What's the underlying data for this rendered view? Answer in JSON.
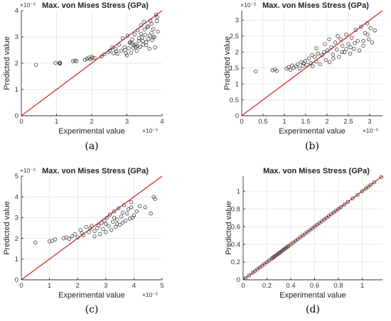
{
  "chart_data": [
    {
      "type": "scatter",
      "panel": "(a)",
      "title": "Max. von Mises Stress (GPa)",
      "xlabel": "Experimental value",
      "ylabel": "Predicted value",
      "x_exponent": "×10⁻³",
      "y_exponent": "×10⁻³",
      "xlim": [
        0,
        4
      ],
      "ylim": [
        0,
        4
      ],
      "xticks": [
        "0",
        "1",
        "2",
        "3",
        "4"
      ],
      "yticks": [
        "0",
        "1",
        "2",
        "3",
        "4"
      ],
      "grid": true,
      "reference_line": "y = x",
      "x": [
        0.42,
        0.97,
        1.08,
        1.1,
        1.1,
        1.47,
        1.52,
        1.57,
        1.81,
        1.86,
        1.92,
        1.96,
        2.0,
        2.02,
        2.08,
        2.28,
        2.36,
        2.48,
        2.52,
        2.58,
        2.62,
        2.68,
        2.73,
        2.78,
        2.84,
        2.88,
        2.93,
        2.97,
        3.02,
        3.05,
        3.08,
        3.12,
        3.15,
        3.18,
        3.22,
        3.25,
        3.28,
        3.31,
        3.34,
        3.37,
        3.4,
        3.43,
        3.46,
        3.49,
        3.52,
        3.55,
        3.58,
        3.61,
        3.64,
        3.67,
        3.7,
        3.72,
        3.75,
        3.78,
        3.8,
        3.83,
        3.86,
        3.88,
        3.2,
        3.35,
        3.5,
        3.65,
        3.1,
        3.25,
        3.45,
        3.6,
        3.75,
        2.95,
        3.15,
        3.4,
        3.55,
        3.7,
        3.85,
        2.7,
        3.0,
        3.3
      ],
      "y": [
        1.94,
        2.01,
        2.0,
        2.02,
        1.98,
        2.08,
        2.1,
        2.08,
        2.13,
        2.17,
        2.21,
        2.15,
        2.25,
        2.19,
        2.2,
        2.26,
        2.34,
        2.42,
        2.48,
        2.6,
        2.38,
        2.55,
        2.36,
        2.7,
        2.48,
        2.95,
        2.61,
        2.38,
        3.05,
        2.57,
        2.78,
        2.4,
        2.9,
        2.58,
        3.1,
        2.72,
        2.47,
        3.25,
        2.85,
        2.62,
        3.45,
        2.98,
        2.7,
        3.58,
        3.08,
        2.8,
        3.38,
        2.92,
        2.55,
        3.62,
        3.15,
        2.88,
        3.3,
        3.0,
        2.6,
        3.85,
        3.75,
        3.2,
        2.68,
        2.95,
        3.28,
        3.05,
        2.8,
        2.62,
        2.85,
        3.4,
        2.98,
        2.5,
        2.75,
        3.12,
        2.68,
        3.5,
        3.6,
        2.45,
        2.3,
        2.65
      ],
      "caption": "(a)"
    },
    {
      "type": "scatter",
      "panel": "(b)",
      "title": "Max. von Mises Stress (GPa)",
      "xlabel": "Experimental value",
      "ylabel": "Predicted value",
      "x_exponent": "×10⁻³",
      "y_exponent": "×10⁻³",
      "xlim": [
        0,
        3.3
      ],
      "ylim": [
        0,
        3.3
      ],
      "xticks": [
        "0",
        "0.5",
        "1",
        "1.5",
        "2",
        "2.5",
        "3"
      ],
      "yticks": [
        "0",
        "0.5",
        "1",
        "1.5",
        "2",
        "2.5",
        "3"
      ],
      "grid": true,
      "reference_line": "y = x",
      "x": [
        0.33,
        0.72,
        0.78,
        0.82,
        1.05,
        1.1,
        1.14,
        1.18,
        1.22,
        1.27,
        1.31,
        1.36,
        1.4,
        1.44,
        1.49,
        1.53,
        1.57,
        1.62,
        1.66,
        1.71,
        1.75,
        1.79,
        1.84,
        1.88,
        1.93,
        1.97,
        2.01,
        2.06,
        2.1,
        2.14,
        2.19,
        2.23,
        2.28,
        2.32,
        2.36,
        2.41,
        2.45,
        2.5,
        2.54,
        2.58,
        2.63,
        2.67,
        2.72,
        2.76,
        2.8,
        2.85,
        2.89,
        2.94,
        2.98,
        3.02,
        3.06,
        3.12,
        1.65,
        1.95,
        2.25,
        2.55,
        2.85,
        1.45,
        1.75,
        2.05,
        2.35,
        2.65,
        2.95,
        2.15,
        2.45
      ],
      "y": [
        1.39,
        1.43,
        1.46,
        1.41,
        1.48,
        1.53,
        1.44,
        1.58,
        1.5,
        1.55,
        1.62,
        1.49,
        1.68,
        1.57,
        1.72,
        1.6,
        1.8,
        1.65,
        1.55,
        1.85,
        1.7,
        1.95,
        1.62,
        1.9,
        2.0,
        1.75,
        2.05,
        1.68,
        2.15,
        1.92,
        2.3,
        2.08,
        1.85,
        2.4,
        2.2,
        2.0,
        2.55,
        2.25,
        1.95,
        2.45,
        2.1,
        2.7,
        2.35,
        2.05,
        2.8,
        2.2,
        2.6,
        2.9,
        2.4,
        2.75,
        2.3,
        2.68,
        1.9,
        2.25,
        2.5,
        2.15,
        2.35,
        1.65,
        2.12,
        2.4,
        2.0,
        2.28,
        2.55,
        1.8,
        2.1
      ],
      "caption": "(b)"
    },
    {
      "type": "scatter",
      "panel": "(c)",
      "title": "Max. von Mises Stress (GPa)",
      "xlabel": "Experimental value",
      "ylabel": "Predicted value",
      "x_exponent": "×10⁻³",
      "y_exponent": "×10⁻³",
      "xlim": [
        0,
        5
      ],
      "ylim": [
        0,
        5
      ],
      "xticks": [
        "0",
        "1",
        "2",
        "3",
        "4",
        "5"
      ],
      "yticks": [
        "0",
        "1",
        "2",
        "3",
        "4",
        "5"
      ],
      "grid": true,
      "reference_line": "y = x",
      "x": [
        0.5,
        1.0,
        1.1,
        1.2,
        1.5,
        1.6,
        1.7,
        1.8,
        1.9,
        2.0,
        2.1,
        2.2,
        2.3,
        2.4,
        2.5,
        2.6,
        2.7,
        2.8,
        2.85,
        2.9,
        2.95,
        3.0,
        3.05,
        3.1,
        3.15,
        3.2,
        3.25,
        3.3,
        3.35,
        3.4,
        3.45,
        3.5,
        3.55,
        3.6,
        3.65,
        3.7,
        3.75,
        3.8,
        3.85,
        3.9,
        3.95,
        4.0,
        4.1,
        4.2,
        4.4,
        4.6,
        4.7,
        4.75,
        2.15,
        2.45,
        2.75,
        3.0,
        3.3,
        3.6,
        3.9,
        2.6,
        3.4
      ],
      "y": [
        1.8,
        1.85,
        1.88,
        1.95,
        2.0,
        2.05,
        1.98,
        2.1,
        2.2,
        2.05,
        2.4,
        2.15,
        2.55,
        2.3,
        2.6,
        2.35,
        2.5,
        2.2,
        2.75,
        2.45,
        2.85,
        2.3,
        3.0,
        2.6,
        3.15,
        2.4,
        2.8,
        3.3,
        2.55,
        2.9,
        3.45,
        2.65,
        3.05,
        2.75,
        3.6,
        2.85,
        3.2,
        3.4,
        2.95,
        3.75,
        3.0,
        3.1,
        3.3,
        3.55,
        3.5,
        3.2,
        4.0,
        3.9,
        2.25,
        2.48,
        2.62,
        2.7,
        3.0,
        3.25,
        3.5,
        2.1,
        2.7
      ],
      "caption": "(c)"
    },
    {
      "type": "scatter",
      "panel": "(d)",
      "title": "Max. von Mises Stress (GPa)",
      "xlabel": "Experimental value",
      "ylabel": "Predicted value",
      "x_exponent": "",
      "y_exponent": "",
      "xlim": [
        0,
        1.17
      ],
      "ylim": [
        0,
        1.17
      ],
      "xticks": [
        "0",
        "0.2",
        "0.4",
        "0.6",
        "0.8",
        "1"
      ],
      "yticks": [
        "0",
        "0.2",
        "0.4",
        "0.6",
        "0.8",
        "1"
      ],
      "grid": true,
      "reference_line": "y = x",
      "x": [
        0.02,
        0.05,
        0.08,
        0.1,
        0.12,
        0.14,
        0.16,
        0.18,
        0.2,
        0.22,
        0.24,
        0.25,
        0.26,
        0.27,
        0.28,
        0.29,
        0.3,
        0.31,
        0.32,
        0.33,
        0.34,
        0.35,
        0.36,
        0.37,
        0.38,
        0.4,
        0.42,
        0.44,
        0.46,
        0.48,
        0.5,
        0.52,
        0.54,
        0.56,
        0.58,
        0.6,
        0.62,
        0.64,
        0.66,
        0.68,
        0.7,
        0.72,
        0.74,
        0.76,
        0.78,
        0.8,
        0.82,
        0.85,
        0.88,
        0.92,
        0.96,
        1.0,
        1.03,
        1.05,
        1.07,
        1.1,
        1.16
      ],
      "y": [
        0.02,
        0.05,
        0.08,
        0.1,
        0.12,
        0.14,
        0.16,
        0.18,
        0.2,
        0.22,
        0.24,
        0.25,
        0.26,
        0.27,
        0.28,
        0.29,
        0.3,
        0.31,
        0.32,
        0.33,
        0.34,
        0.35,
        0.36,
        0.37,
        0.38,
        0.4,
        0.42,
        0.44,
        0.46,
        0.48,
        0.5,
        0.52,
        0.54,
        0.56,
        0.58,
        0.6,
        0.62,
        0.64,
        0.66,
        0.68,
        0.7,
        0.72,
        0.74,
        0.76,
        0.78,
        0.8,
        0.82,
        0.85,
        0.88,
        0.92,
        0.96,
        1.0,
        1.03,
        1.05,
        1.07,
        1.1,
        1.16
      ],
      "caption": "(d)"
    }
  ],
  "colors": {
    "points": "#333333",
    "reference_line": "#d62b2b",
    "grid": "#e3e3e3"
  }
}
